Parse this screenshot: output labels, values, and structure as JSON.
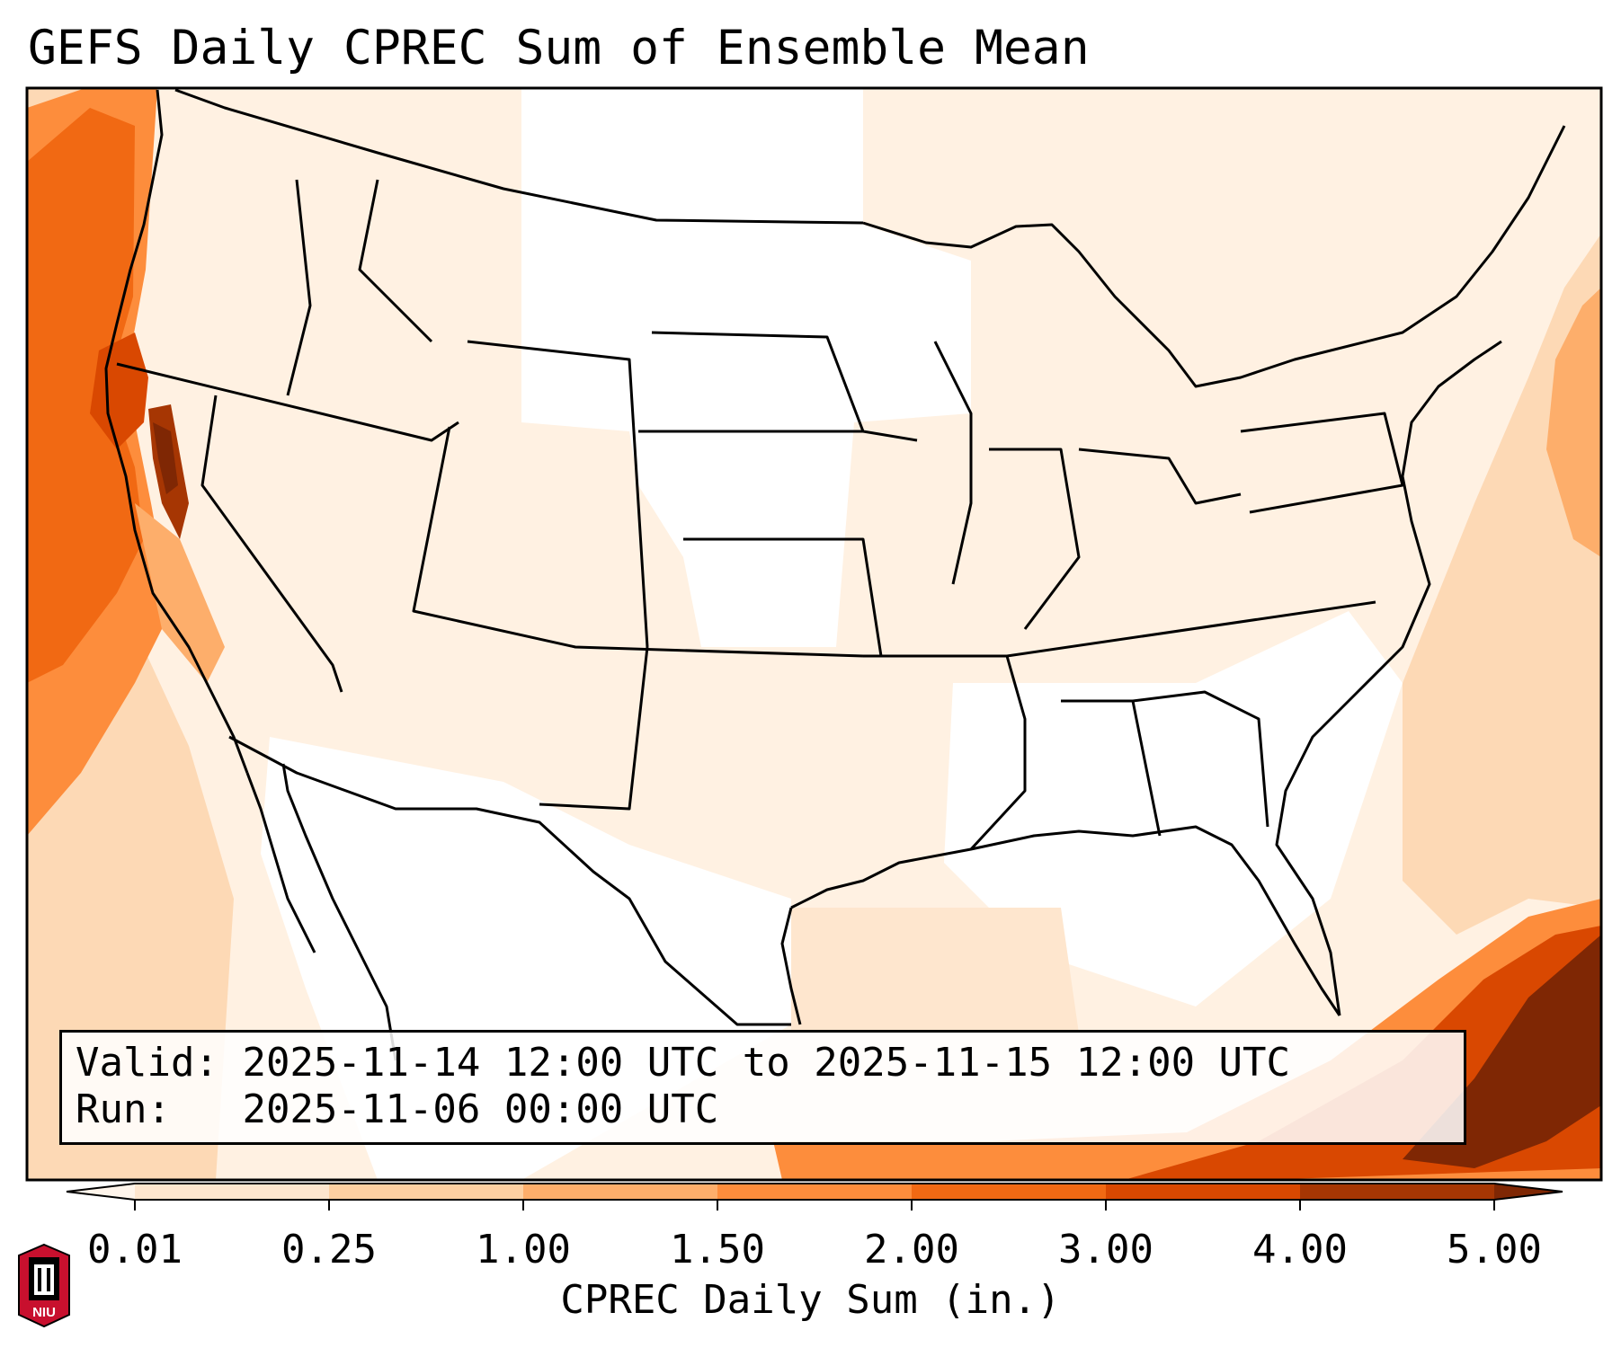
{
  "title": "GEFS Daily CPREC Sum of Ensemble Mean",
  "info": {
    "valid_label": "Valid:",
    "valid_value": "2025-11-14 12:00 UTC to 2025-11-15 12:00 UTC",
    "run_label": "Run:",
    "run_value": "2025-11-06 00:00 UTC"
  },
  "colorbar": {
    "label": "CPREC Daily Sum (in.)",
    "ticks": [
      "0.01",
      "0.25",
      "1.00",
      "1.50",
      "2.00",
      "3.00",
      "4.00",
      "5.00"
    ],
    "colors": [
      "#fff5eb",
      "#fee6ce",
      "#fdd0a2",
      "#fdae6b",
      "#fd8d3c",
      "#f16913",
      "#d94801",
      "#a63603",
      "#7f2704"
    ],
    "extend": "both"
  },
  "logo": {
    "text": "NIU"
  }
}
